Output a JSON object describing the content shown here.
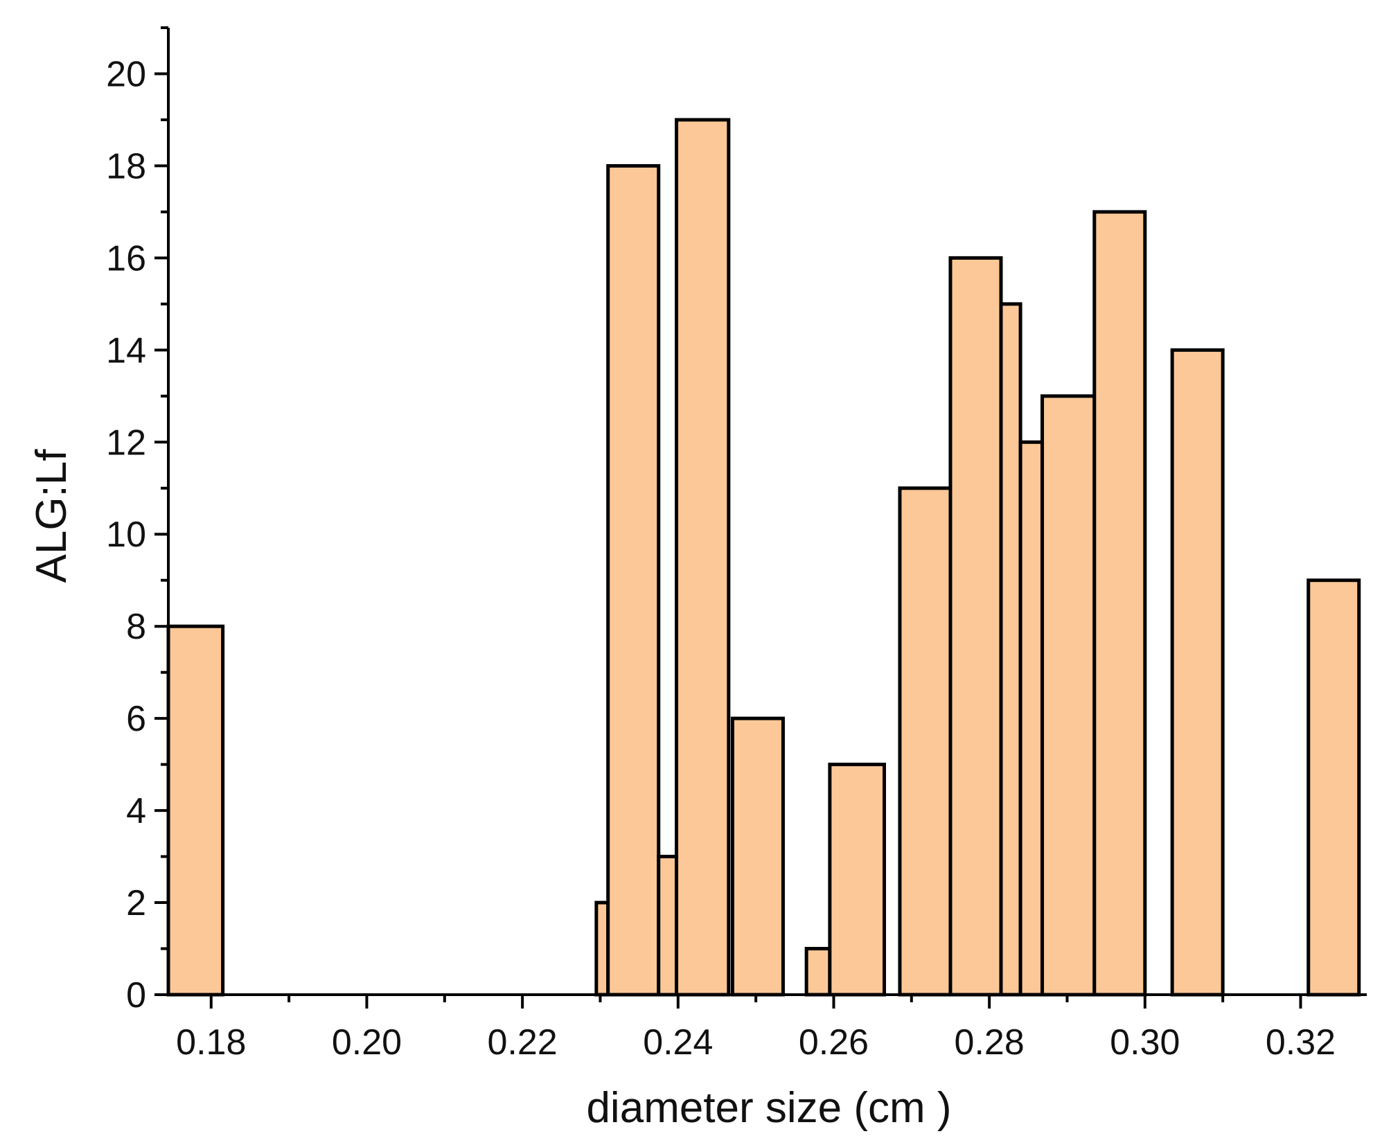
{
  "chart_data": {
    "type": "bar",
    "title": "",
    "xlabel": "diameter size (cm )",
    "ylabel": "ALG:Lf",
    "xlim": [
      0.1745,
      0.3285
    ],
    "ylim": [
      0,
      21
    ],
    "x_ticks": [
      "0.18",
      "0.20",
      "0.22",
      "0.24",
      "0.26",
      "0.28",
      "0.30",
      "0.32"
    ],
    "y_ticks": [
      "0",
      "2",
      "4",
      "6",
      "8",
      "10",
      "12",
      "14",
      "16",
      "18",
      "20"
    ],
    "grid": false,
    "legend": "none",
    "bar_color": "#fcc898",
    "edge_color": "#000000",
    "bars": [
      {
        "x0": 0.1745,
        "x1": 0.1815,
        "value": 8
      },
      {
        "x0": 0.2295,
        "x1": 0.231,
        "value": 2
      },
      {
        "x0": 0.231,
        "x1": 0.2375,
        "value": 18
      },
      {
        "x0": 0.2375,
        "x1": 0.2398,
        "value": 3
      },
      {
        "x0": 0.2398,
        "x1": 0.2465,
        "value": 19
      },
      {
        "x0": 0.247,
        "x1": 0.2535,
        "value": 6
      },
      {
        "x0": 0.2565,
        "x1": 0.2595,
        "value": 1
      },
      {
        "x0": 0.2595,
        "x1": 0.2665,
        "value": 5
      },
      {
        "x0": 0.2685,
        "x1": 0.275,
        "value": 11
      },
      {
        "x0": 0.275,
        "x1": 0.2815,
        "value": 16
      },
      {
        "x0": 0.2815,
        "x1": 0.284,
        "value": 15
      },
      {
        "x0": 0.284,
        "x1": 0.2868,
        "value": 12
      },
      {
        "x0": 0.2868,
        "x1": 0.2935,
        "value": 13
      },
      {
        "x0": 0.2935,
        "x1": 0.3,
        "value": 17
      },
      {
        "x0": 0.3035,
        "x1": 0.31,
        "value": 14
      },
      {
        "x0": 0.321,
        "x1": 0.3275,
        "value": 9
      }
    ]
  }
}
